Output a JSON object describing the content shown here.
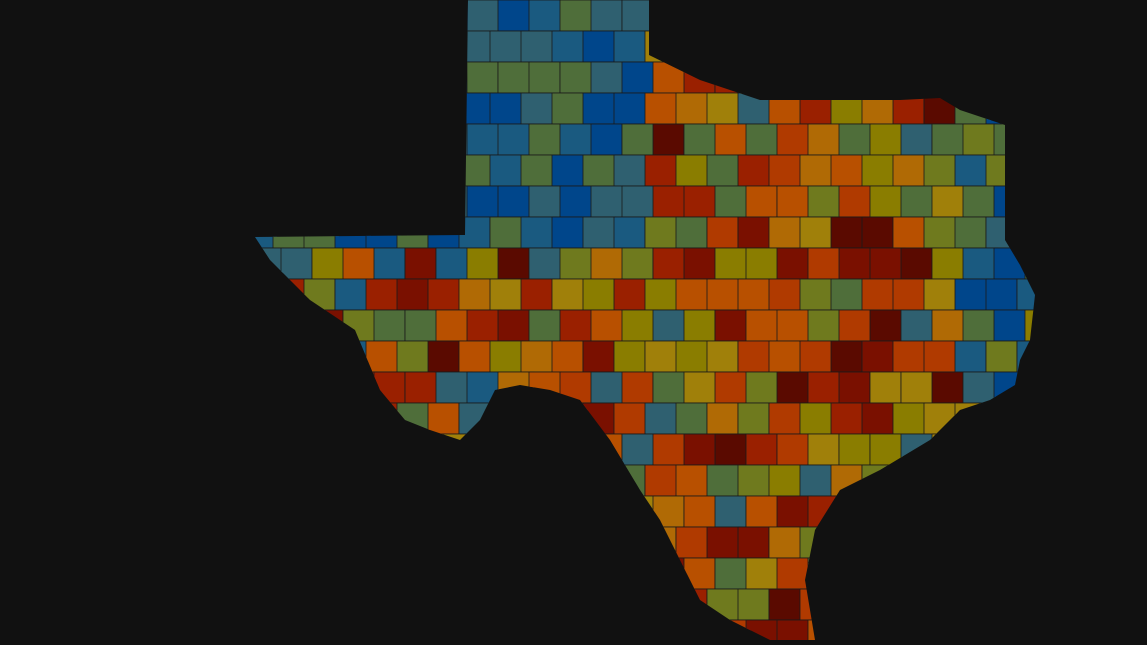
{
  "map": {
    "palette": [
      "#00468b",
      "#1a5a80",
      "#2f6070",
      "#4f6e3a",
      "#6f7a1e",
      "#8a7d00",
      "#a0800a",
      "#b06a05",
      "#b85000",
      "#b03a00",
      "#9a2000",
      "#7a1000",
      "#5a0a00"
    ],
    "background": "#111111"
  }
}
